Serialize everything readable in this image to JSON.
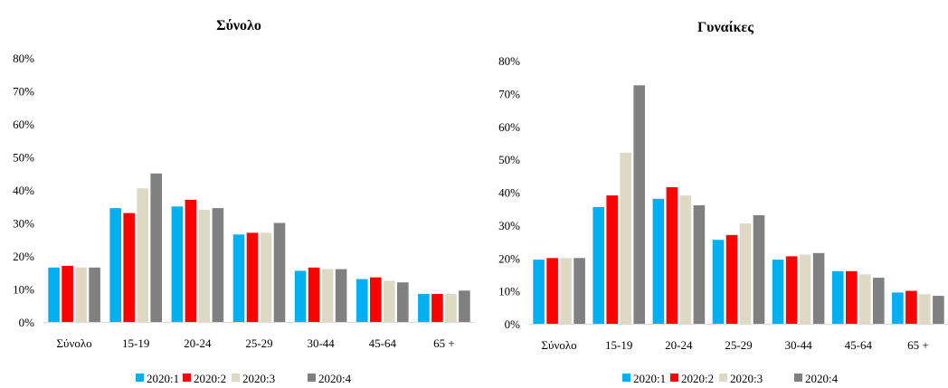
{
  "colors": [
    "#00b0f0",
    "#ff0000",
    "#ddd9c4",
    "#808080"
  ],
  "chart_data": [
    {
      "type": "bar",
      "title": "Σύνολο",
      "categories": [
        "Σύνολο",
        "15-19",
        "20-24",
        "25-29",
        "30-44",
        "45-64",
        "65 +"
      ],
      "yticks": [
        "0%",
        "10%",
        "20%",
        "30%",
        "40%",
        "50%",
        "60%",
        "70%",
        "80%"
      ],
      "ylim": [
        0,
        80
      ],
      "legend_position": "bottom",
      "series": [
        {
          "name": "2020:1",
          "values": [
            16.5,
            34.5,
            35,
            26.5,
            15.5,
            13,
            8.5
          ]
        },
        {
          "name": "2020:2",
          "values": [
            17,
            33,
            37,
            27,
            16.5,
            13.5,
            8.5
          ]
        },
        {
          "name": "2020:3",
          "values": [
            16.5,
            40.5,
            34,
            27,
            16,
            12.5,
            8.5
          ]
        },
        {
          "name": "2020:4",
          "values": [
            16.5,
            45,
            34.5,
            30,
            16,
            12,
            9.5
          ]
        }
      ]
    },
    {
      "type": "bar",
      "title": "Γυναίκες",
      "categories": [
        "Σύνολο",
        "15-19",
        "20-24",
        "25-29",
        "30-44",
        "45-64",
        "65 +"
      ],
      "yticks": [
        "0%",
        "10%",
        "20%",
        "30%",
        "40%",
        "50%",
        "60%",
        "70%",
        "80%"
      ],
      "ylim": [
        0,
        80
      ],
      "legend_position": "bottom",
      "series": [
        {
          "name": "2020:1",
          "values": [
            19.5,
            35.5,
            38,
            25.5,
            19.5,
            16,
            9.5
          ]
        },
        {
          "name": "2020:2",
          "values": [
            20,
            39,
            41.5,
            27,
            20.5,
            16,
            10
          ]
        },
        {
          "name": "2020:3",
          "values": [
            20,
            52,
            39,
            30.5,
            21,
            15,
            9
          ]
        },
        {
          "name": "2020:4",
          "values": [
            20,
            72.5,
            36,
            33,
            21.5,
            14,
            8.5
          ]
        }
      ]
    }
  ]
}
